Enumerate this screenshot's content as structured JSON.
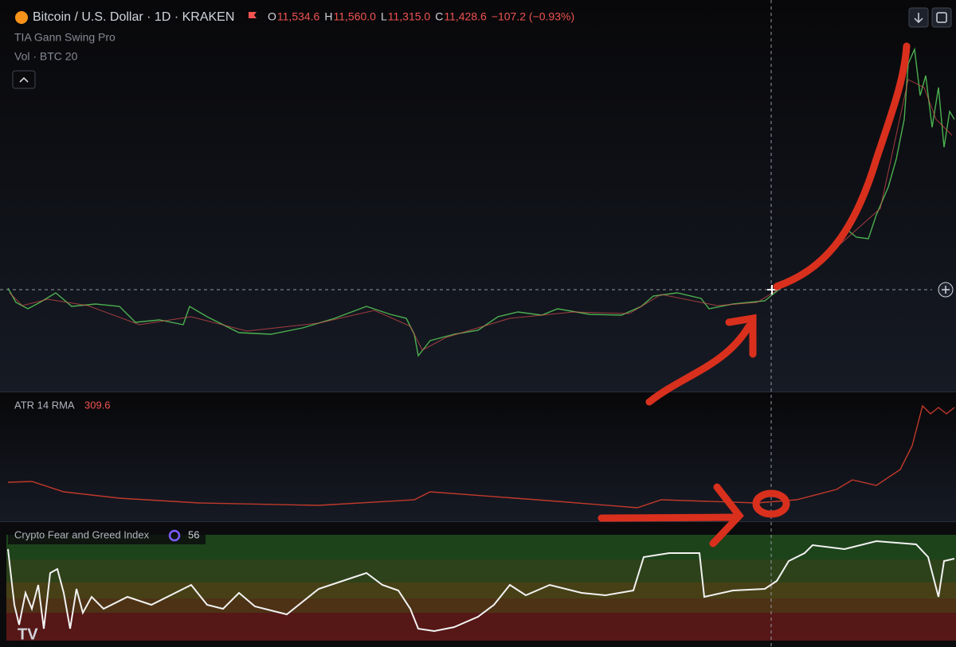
{
  "header": {
    "symbol": "Bitcoin / U.S. Dollar · 1D · KRAKEN",
    "ohlc": [
      {
        "label": "O",
        "value": "11,534.6"
      },
      {
        "label": "H",
        "value": "11,560.0"
      },
      {
        "label": "L",
        "value": "11,315.0"
      },
      {
        "label": "C",
        "value": "11,428.6"
      }
    ],
    "change": "−107.2 (−0.93%)"
  },
  "indicators": [
    "TIA Gann Swing Pro",
    "Vol · BTC 20"
  ],
  "atr": {
    "label": "ATR 14 RMA",
    "value": "309.6"
  },
  "fear_greed": {
    "label": "Crypto Fear and Greed Index",
    "value": "56"
  }
}
